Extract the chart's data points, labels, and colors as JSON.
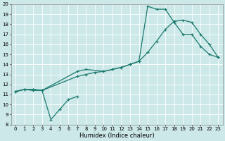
{
  "xlabel": "Humidex (Indice chaleur)",
  "bg_color": "#cce8e8",
  "grid_color": "#ffffff",
  "line_color": "#1a7a6e",
  "xlim": [
    -0.5,
    23.5
  ],
  "ylim": [
    8,
    20
  ],
  "xticks": [
    0,
    1,
    2,
    3,
    4,
    5,
    6,
    7,
    8,
    9,
    10,
    11,
    12,
    13,
    14,
    15,
    16,
    17,
    18,
    19,
    20,
    21,
    22,
    23
  ],
  "yticks": [
    8,
    9,
    10,
    11,
    12,
    13,
    14,
    15,
    16,
    17,
    18,
    19,
    20
  ],
  "line1_x": [
    0,
    1,
    2,
    3,
    4,
    5,
    6,
    7
  ],
  "line1_y": [
    11.3,
    11.5,
    11.4,
    11.4,
    8.5,
    9.5,
    10.5,
    10.8
  ],
  "line2_x": [
    0,
    1,
    2,
    3,
    7,
    8,
    10,
    11,
    12,
    13,
    14,
    15,
    16,
    17,
    18,
    19,
    20,
    21,
    22,
    23
  ],
  "line2_y": [
    11.3,
    11.5,
    11.5,
    11.4,
    13.3,
    13.5,
    13.3,
    13.5,
    13.7,
    14.0,
    14.3,
    15.2,
    16.3,
    17.5,
    18.3,
    18.4,
    18.2,
    17.0,
    16.0,
    14.7
  ],
  "line3_x": [
    0,
    1,
    2,
    3,
    7,
    8,
    9,
    10,
    11,
    12,
    13,
    14,
    15,
    16,
    17,
    18,
    19,
    20,
    21,
    22,
    23
  ],
  "line3_y": [
    11.3,
    11.5,
    11.5,
    11.4,
    12.8,
    13.0,
    13.2,
    13.3,
    13.5,
    13.7,
    14.0,
    14.3,
    19.8,
    19.5,
    19.5,
    18.2,
    17.0,
    17.0,
    15.8,
    15.0,
    14.7
  ],
  "marker": "+",
  "markersize": 3,
  "linewidth": 0.9,
  "tick_fontsize": 5,
  "xlabel_fontsize": 6
}
